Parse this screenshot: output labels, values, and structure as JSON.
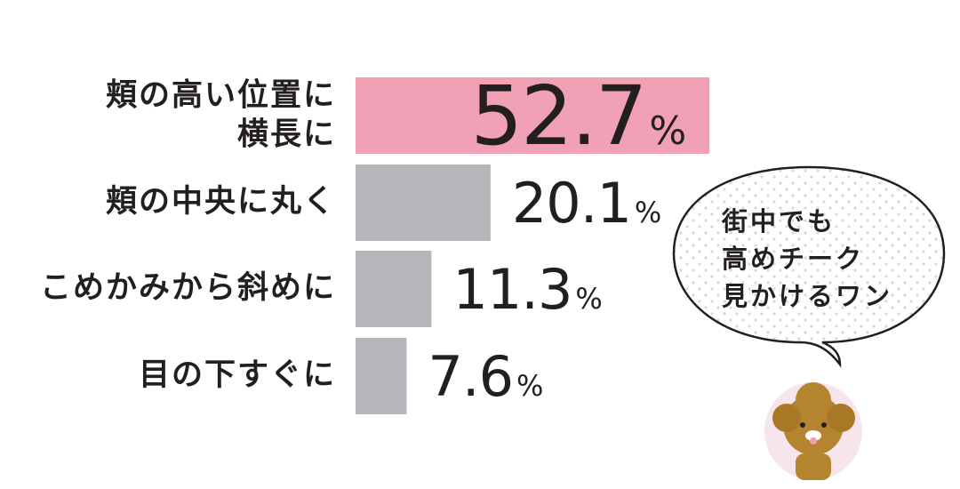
{
  "chart_data": {
    "type": "bar",
    "orientation": "horizontal",
    "categories": [
      "頬の高い位置に\n横長に",
      "頬の中央に丸く",
      "こめかみから斜めに",
      "目の下すぐに"
    ],
    "values": [
      52.7,
      20.1,
      11.3,
      7.6
    ],
    "value_labels": [
      "52.7%",
      "20.1%",
      "11.3%",
      "7.6%"
    ],
    "colors": [
      "#f0a1b5",
      "#b4b6b9",
      "#b4b6b9",
      "#b4b6b9"
    ],
    "xlim": [
      0,
      54
    ],
    "annotation": "街中でも\n高めチーク\n見かけるワン"
  }
}
